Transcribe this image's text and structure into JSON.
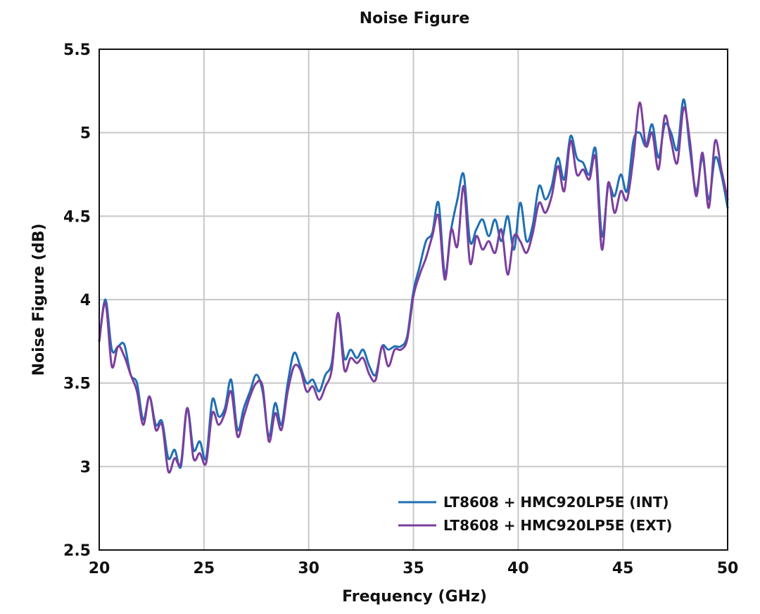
{
  "chart_data": {
    "type": "line",
    "title": "Noise Figure",
    "xlabel": "Frequency (GHz)",
    "ylabel": "Noise Figure (dB)",
    "xlim": [
      20,
      50
    ],
    "ylim": [
      2.5,
      5.5
    ],
    "xticks": [
      20,
      25,
      30,
      35,
      40,
      45,
      50
    ],
    "yticks": [
      2.5,
      3,
      3.5,
      4,
      4.5,
      5,
      5.5
    ],
    "ytick_labels": [
      "2.5",
      "3",
      "3.5",
      "4",
      "4.5",
      "5",
      "5.5"
    ],
    "grid": true,
    "legend_position": "bottom-right",
    "x": [
      20.0,
      20.3,
      20.6,
      20.9,
      21.2,
      21.5,
      21.8,
      22.1,
      22.4,
      22.7,
      23.0,
      23.3,
      23.6,
      23.9,
      24.2,
      24.5,
      24.8,
      25.1,
      25.4,
      25.7,
      26.0,
      26.3,
      26.6,
      26.9,
      27.2,
      27.5,
      27.8,
      28.1,
      28.4,
      28.7,
      29.0,
      29.3,
      29.6,
      29.9,
      30.2,
      30.5,
      30.8,
      31.1,
      31.4,
      31.7,
      32.0,
      32.3,
      32.6,
      32.9,
      33.2,
      33.5,
      33.8,
      34.1,
      34.4,
      34.7,
      35.0,
      35.3,
      35.6,
      35.9,
      36.2,
      36.5,
      36.8,
      37.1,
      37.4,
      37.7,
      38.0,
      38.3,
      38.6,
      38.9,
      39.2,
      39.5,
      39.8,
      40.1,
      40.4,
      40.7,
      41.0,
      41.3,
      41.6,
      41.9,
      42.2,
      42.5,
      42.8,
      43.1,
      43.4,
      43.7,
      44.0,
      44.3,
      44.6,
      44.9,
      45.2,
      45.5,
      45.8,
      46.1,
      46.4,
      46.7,
      47.0,
      47.3,
      47.6,
      47.9,
      48.2,
      48.5,
      48.8,
      49.1,
      49.4,
      49.7,
      50.0
    ],
    "series": [
      {
        "name": "LT8608 + HMC920LP5E (INT)",
        "color": "#1f6fb4",
        "values": [
          3.75,
          4.0,
          3.7,
          3.72,
          3.73,
          3.55,
          3.5,
          3.28,
          3.42,
          3.25,
          3.27,
          3.05,
          3.1,
          3.0,
          3.35,
          3.1,
          3.15,
          3.05,
          3.4,
          3.3,
          3.35,
          3.52,
          3.22,
          3.35,
          3.45,
          3.55,
          3.45,
          3.18,
          3.38,
          3.25,
          3.5,
          3.68,
          3.6,
          3.5,
          3.52,
          3.45,
          3.55,
          3.62,
          3.92,
          3.65,
          3.7,
          3.65,
          3.7,
          3.6,
          3.55,
          3.72,
          3.7,
          3.72,
          3.72,
          3.78,
          4.05,
          4.2,
          4.35,
          4.4,
          4.58,
          4.15,
          4.42,
          4.6,
          4.75,
          4.35,
          4.42,
          4.48,
          4.38,
          4.48,
          4.35,
          4.5,
          4.3,
          4.58,
          4.35,
          4.45,
          4.68,
          4.6,
          4.68,
          4.85,
          4.72,
          4.98,
          4.85,
          4.82,
          4.75,
          4.9,
          4.38,
          4.68,
          4.62,
          4.75,
          4.65,
          4.95,
          5.0,
          4.92,
          5.05,
          4.85,
          5.05,
          5.0,
          4.9,
          5.2,
          4.9,
          4.65,
          4.85,
          4.6,
          4.85,
          4.75,
          4.55
        ]
      },
      {
        "name": "LT8608 + HMC920LP5E (EXT)",
        "color": "#7b3f9e",
        "values": [
          3.75,
          3.98,
          3.6,
          3.72,
          3.66,
          3.55,
          3.45,
          3.25,
          3.42,
          3.22,
          3.25,
          2.97,
          3.05,
          3.02,
          3.35,
          3.05,
          3.08,
          3.02,
          3.32,
          3.25,
          3.32,
          3.45,
          3.18,
          3.3,
          3.42,
          3.5,
          3.48,
          3.15,
          3.32,
          3.22,
          3.45,
          3.6,
          3.58,
          3.45,
          3.48,
          3.4,
          3.48,
          3.58,
          3.92,
          3.58,
          3.65,
          3.62,
          3.65,
          3.55,
          3.52,
          3.72,
          3.6,
          3.7,
          3.7,
          3.76,
          4.02,
          4.15,
          4.25,
          4.38,
          4.5,
          4.12,
          4.42,
          4.32,
          4.68,
          4.22,
          4.38,
          4.3,
          4.35,
          4.28,
          4.42,
          4.15,
          4.38,
          4.35,
          4.28,
          4.4,
          4.58,
          4.52,
          4.62,
          4.8,
          4.65,
          4.95,
          4.75,
          4.78,
          4.72,
          4.85,
          4.3,
          4.7,
          4.52,
          4.65,
          4.6,
          4.85,
          5.18,
          4.92,
          5.0,
          4.78,
          5.1,
          4.95,
          4.82,
          5.15,
          4.95,
          4.62,
          4.88,
          4.55,
          4.95,
          4.78,
          4.6
        ]
      }
    ]
  }
}
